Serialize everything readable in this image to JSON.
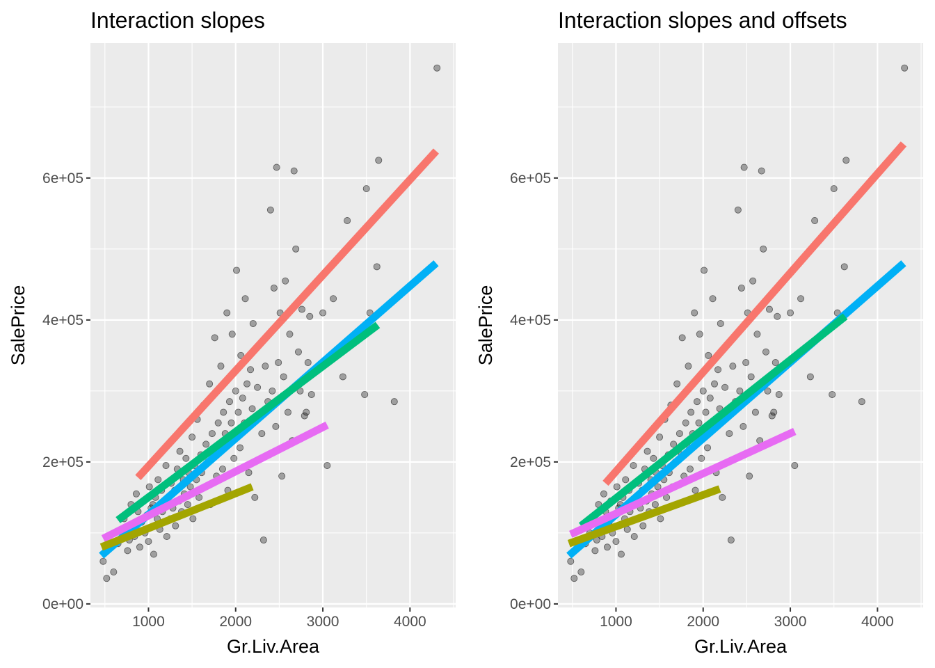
{
  "chart_data": [
    {
      "type": "scatter",
      "title": "Interaction slopes",
      "xlabel": "Gr.Liv.Area",
      "ylabel": "SalePrice",
      "xlim": [
        334,
        4524
      ],
      "ylim": [
        -5000,
        790000
      ],
      "x_ticks": [
        1000,
        2000,
        3000,
        4000
      ],
      "x_tick_labels": [
        "1000",
        "2000",
        "3000",
        "4000"
      ],
      "y_ticks": [
        0,
        200000,
        400000,
        600000
      ],
      "y_tick_labels": [
        "0e+00",
        "2e+05",
        "4e+05",
        "6e+05"
      ],
      "grid": true,
      "legend": "none",
      "points": [
        [
          480,
          60000
        ],
        [
          520,
          36000
        ],
        [
          600,
          45000
        ],
        [
          650,
          85000
        ],
        [
          700,
          100000
        ],
        [
          720,
          120000
        ],
        [
          760,
          75000
        ],
        [
          780,
          90000
        ],
        [
          800,
          140000
        ],
        [
          820,
          110000
        ],
        [
          840,
          95000
        ],
        [
          860,
          155000
        ],
        [
          880,
          130000
        ],
        [
          900,
          80000
        ],
        [
          920,
          115000
        ],
        [
          940,
          145000
        ],
        [
          960,
          100000
        ],
        [
          980,
          125000
        ],
        [
          1000,
          88000
        ],
        [
          1010,
          165000
        ],
        [
          1030,
          135000
        ],
        [
          1050,
          140000
        ],
        [
          1060,
          70000
        ],
        [
          1080,
          150000
        ],
        [
          1100,
          120000
        ],
        [
          1110,
          175000
        ],
        [
          1130,
          105000
        ],
        [
          1150,
          160000
        ],
        [
          1160,
          130000
        ],
        [
          1180,
          140000
        ],
        [
          1200,
          195000
        ],
        [
          1210,
          95000
        ],
        [
          1230,
          150000
        ],
        [
          1250,
          120000
        ],
        [
          1260,
          170000
        ],
        [
          1280,
          135000
        ],
        [
          1300,
          160000
        ],
        [
          1310,
          110000
        ],
        [
          1330,
          190000
        ],
        [
          1350,
          145000
        ],
        [
          1360,
          215000
        ],
        [
          1380,
          130000
        ],
        [
          1400,
          175000
        ],
        [
          1410,
          155000
        ],
        [
          1430,
          205000
        ],
        [
          1450,
          140000
        ],
        [
          1460,
          185000
        ],
        [
          1480,
          165000
        ],
        [
          1500,
          235000
        ],
        [
          1510,
          120000
        ],
        [
          1530,
          195000
        ],
        [
          1550,
          175000
        ],
        [
          1560,
          260000
        ],
        [
          1580,
          150000
        ],
        [
          1600,
          210000
        ],
        [
          1610,
          185000
        ],
        [
          1630,
          280000
        ],
        [
          1650,
          165000
        ],
        [
          1660,
          225000
        ],
        [
          1680,
          200000
        ],
        [
          1700,
          310000
        ],
        [
          1710,
          140000
        ],
        [
          1730,
          240000
        ],
        [
          1750,
          210000
        ],
        [
          1760,
          375000
        ],
        [
          1780,
          180000
        ],
        [
          1800,
          255000
        ],
        [
          1810,
          225000
        ],
        [
          1830,
          335000
        ],
        [
          1850,
          190000
        ],
        [
          1860,
          270000
        ],
        [
          1880,
          240000
        ],
        [
          1900,
          410000
        ],
        [
          1910,
          160000
        ],
        [
          1930,
          285000
        ],
        [
          1950,
          255000
        ],
        [
          1960,
          380000
        ],
        [
          1980,
          205000
        ],
        [
          2000,
          300000
        ],
        [
          2010,
          470000
        ],
        [
          2030,
          270000
        ],
        [
          2050,
          220000
        ],
        [
          2060,
          350000
        ],
        [
          2080,
          290000
        ],
        [
          2100,
          255000
        ],
        [
          2110,
          430000
        ],
        [
          2130,
          310000
        ],
        [
          2150,
          185000
        ],
        [
          2170,
          330000
        ],
        [
          2190,
          275000
        ],
        [
          2200,
          395000
        ],
        [
          2220,
          150000
        ],
        [
          2250,
          305000
        ],
        [
          2270,
          365000
        ],
        [
          2300,
          240000
        ],
        [
          2320,
          90000
        ],
        [
          2340,
          335000
        ],
        [
          2370,
          285000
        ],
        [
          2400,
          555000
        ],
        [
          2420,
          300000
        ],
        [
          2440,
          445000
        ],
        [
          2460,
          250000
        ],
        [
          2470,
          615000
        ],
        [
          2490,
          340000
        ],
        [
          2510,
          410000
        ],
        [
          2530,
          180000
        ],
        [
          2550,
          320000
        ],
        [
          2570,
          455000
        ],
        [
          2600,
          270000
        ],
        [
          2620,
          380000
        ],
        [
          2650,
          230000
        ],
        [
          2670,
          610000
        ],
        [
          2690,
          500000
        ],
        [
          2720,
          355000
        ],
        [
          2740,
          300000
        ],
        [
          2760,
          415000
        ],
        [
          2790,
          265000
        ],
        [
          2810,
          270000
        ],
        [
          2830,
          340000
        ],
        [
          2850,
          405000
        ],
        [
          2870,
          295000
        ],
        [
          3000,
          410000
        ],
        [
          3050,
          195000
        ],
        [
          3120,
          430000
        ],
        [
          3230,
          320000
        ],
        [
          3280,
          540000
        ],
        [
          3480,
          295000
        ],
        [
          3500,
          585000
        ],
        [
          3540,
          410000
        ],
        [
          3620,
          475000
        ],
        [
          3640,
          625000
        ],
        [
          3820,
          285000
        ],
        [
          4310,
          755000
        ]
      ],
      "lines": [
        {
          "color": "#F8766D",
          "x": [
            880,
            4300
          ],
          "y": [
            178000,
            638000
          ]
        },
        {
          "color": "#00B0F6",
          "x": [
            460,
            4300
          ],
          "y": [
            68000,
            480000
          ]
        },
        {
          "color": "#00BF7D",
          "x": [
            650,
            3630
          ],
          "y": [
            118000,
            393000
          ]
        },
        {
          "color": "#E76BF3",
          "x": [
            480,
            3050
          ],
          "y": [
            92000,
            252000
          ]
        },
        {
          "color": "#A3A500",
          "x": [
            460,
            2190
          ],
          "y": [
            80000,
            165000
          ]
        }
      ]
    },
    {
      "type": "scatter",
      "title": "Interaction slopes and offsets",
      "xlabel": "Gr.Liv.Area",
      "ylabel": "SalePrice",
      "xlim": [
        334,
        4524
      ],
      "ylim": [
        -5000,
        790000
      ],
      "x_ticks": [
        1000,
        2000,
        3000,
        4000
      ],
      "x_tick_labels": [
        "1000",
        "2000",
        "3000",
        "4000"
      ],
      "y_ticks": [
        0,
        200000,
        400000,
        600000
      ],
      "y_tick_labels": [
        "0e+00",
        "2e+05",
        "4e+05",
        "6e+05"
      ],
      "grid": true,
      "legend": "none",
      "points": "same as panel 1",
      "lines": [
        {
          "color": "#F8766D",
          "x": [
            880,
            4300
          ],
          "y": [
            170000,
            648000
          ]
        },
        {
          "color": "#00B0F6",
          "x": [
            460,
            4300
          ],
          "y": [
            68000,
            480000
          ]
        },
        {
          "color": "#00BF7D",
          "x": [
            600,
            3630
          ],
          "y": [
            110000,
            405000
          ]
        },
        {
          "color": "#E76BF3",
          "x": [
            480,
            3050
          ],
          "y": [
            98000,
            243000
          ]
        },
        {
          "color": "#A3A500",
          "x": [
            460,
            2190
          ],
          "y": [
            85000,
            162000
          ]
        }
      ]
    }
  ]
}
